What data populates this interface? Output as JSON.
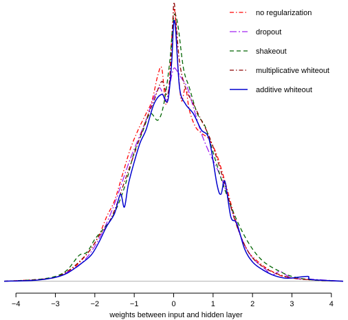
{
  "chart_data": {
    "type": "line",
    "title": "",
    "xlabel": "weights between input and hidden layer",
    "ylabel": "",
    "xlim": [
      -4.3,
      4.3
    ],
    "ylim": [
      -0.02,
      0.86
    ],
    "xticks": [
      -4,
      -3,
      -2,
      -1,
      0,
      1,
      2,
      3,
      4
    ],
    "xtick_labels": [
      "−4",
      "−3",
      "−2",
      "−1",
      "0",
      "1",
      "2",
      "3",
      "4"
    ],
    "yaxis_shown": false,
    "grid": false,
    "legend_position": "top-right",
    "baseline": 0,
    "series": [
      {
        "name": "no regularization",
        "color": "#ff0000",
        "dash": "dashdot",
        "x": [
          -4.3,
          -3.5,
          -3.0,
          -2.7,
          -2.5,
          -2.3,
          -2.1,
          -1.9,
          -1.7,
          -1.5,
          -1.3,
          -1.1,
          -0.9,
          -0.7,
          -0.55,
          -0.4,
          -0.3,
          -0.2,
          -0.12,
          -0.05,
          0.0,
          0.05,
          0.12,
          0.2,
          0.3,
          0.4,
          0.55,
          0.7,
          0.9,
          1.1,
          1.3,
          1.5,
          1.7,
          1.9,
          2.1,
          2.3,
          2.5,
          2.7,
          3.0,
          3.5,
          4.3
        ],
        "y": [
          0.0,
          0.005,
          0.012,
          0.03,
          0.045,
          0.07,
          0.1,
          0.14,
          0.2,
          0.25,
          0.33,
          0.41,
          0.47,
          0.52,
          0.56,
          0.64,
          0.66,
          0.55,
          0.6,
          0.75,
          0.84,
          0.81,
          0.65,
          0.56,
          0.6,
          0.53,
          0.48,
          0.46,
          0.44,
          0.39,
          0.31,
          0.22,
          0.14,
          0.09,
          0.065,
          0.045,
          0.03,
          0.018,
          0.01,
          0.004,
          0.0
        ]
      },
      {
        "name": "dropout",
        "color": "#a020f0",
        "dash": "longdashdot",
        "x": [
          -4.3,
          -3.5,
          -3.0,
          -2.7,
          -2.5,
          -2.3,
          -2.1,
          -1.9,
          -1.7,
          -1.5,
          -1.3,
          -1.1,
          -0.9,
          -0.7,
          -0.5,
          -0.35,
          -0.2,
          -0.1,
          0.0,
          0.1,
          0.2,
          0.35,
          0.5,
          0.7,
          0.9,
          1.1,
          1.3,
          1.5,
          1.7,
          1.9,
          2.1,
          2.3,
          2.5,
          2.7,
          3.0,
          3.5,
          4.3
        ],
        "y": [
          0.0,
          0.004,
          0.012,
          0.028,
          0.04,
          0.06,
          0.09,
          0.13,
          0.18,
          0.24,
          0.31,
          0.38,
          0.44,
          0.5,
          0.57,
          0.6,
          0.56,
          0.61,
          0.66,
          0.65,
          0.63,
          0.6,
          0.54,
          0.46,
          0.4,
          0.35,
          0.29,
          0.21,
          0.14,
          0.09,
          0.06,
          0.04,
          0.02,
          0.03,
          0.01,
          0.006,
          0.0
        ]
      },
      {
        "name": "shakeout",
        "color": "#006400",
        "dash": "dashed",
        "x": [
          -4.3,
          -3.5,
          -3.0,
          -2.7,
          -2.4,
          -2.2,
          -2.0,
          -1.8,
          -1.6,
          -1.4,
          -1.2,
          -1.0,
          -0.8,
          -0.6,
          -0.4,
          -0.25,
          -0.1,
          0.0,
          0.1,
          0.25,
          0.4,
          0.6,
          0.8,
          1.0,
          1.2,
          1.4,
          1.6,
          1.8,
          2.0,
          2.2,
          2.4,
          2.7,
          3.0,
          3.5,
          4.3
        ],
        "y": [
          0.0,
          0.005,
          0.015,
          0.035,
          0.08,
          0.09,
          0.13,
          0.16,
          0.19,
          0.24,
          0.31,
          0.4,
          0.46,
          0.52,
          0.5,
          0.55,
          0.68,
          0.82,
          0.8,
          0.66,
          0.6,
          0.52,
          0.48,
          0.4,
          0.32,
          0.25,
          0.19,
          0.14,
          0.1,
          0.07,
          0.05,
          0.03,
          0.015,
          0.004,
          0.0
        ]
      },
      {
        "name": "multiplicative whiteout",
        "color": "#8b0000",
        "dash": "dashdot",
        "x": [
          -4.3,
          -3.5,
          -3.0,
          -2.7,
          -2.4,
          -2.1,
          -1.9,
          -1.7,
          -1.5,
          -1.3,
          -1.1,
          -0.9,
          -0.7,
          -0.5,
          -0.3,
          -0.15,
          -0.05,
          0.0,
          0.05,
          0.15,
          0.3,
          0.5,
          0.7,
          0.9,
          1.1,
          1.3,
          1.5,
          1.7,
          1.9,
          2.1,
          2.4,
          2.7,
          3.0,
          3.5,
          4.3
        ],
        "y": [
          0.0,
          0.004,
          0.012,
          0.03,
          0.06,
          0.1,
          0.14,
          0.17,
          0.22,
          0.29,
          0.36,
          0.43,
          0.5,
          0.56,
          0.62,
          0.58,
          0.7,
          0.86,
          0.82,
          0.68,
          0.6,
          0.55,
          0.5,
          0.45,
          0.38,
          0.3,
          0.21,
          0.14,
          0.09,
          0.06,
          0.035,
          0.02,
          0.01,
          0.004,
          0.0
        ]
      },
      {
        "name": "additive whiteout",
        "color": "#0000cd",
        "dash": "solid",
        "x": [
          -4.3,
          -3.5,
          -3.0,
          -2.7,
          -2.4,
          -2.1,
          -1.9,
          -1.7,
          -1.5,
          -1.35,
          -1.25,
          -1.15,
          -1.0,
          -0.85,
          -0.7,
          -0.5,
          -0.3,
          -0.15,
          -0.05,
          0.0,
          0.05,
          0.15,
          0.3,
          0.5,
          0.7,
          0.9,
          1.1,
          1.2,
          1.3,
          1.45,
          1.6,
          1.8,
          2.0,
          2.2,
          2.5,
          2.8,
          3.0,
          3.4,
          3.5,
          4.3
        ],
        "y": [
          0.0,
          0.003,
          0.012,
          0.025,
          0.05,
          0.08,
          0.12,
          0.17,
          0.21,
          0.27,
          0.23,
          0.3,
          0.37,
          0.43,
          0.47,
          0.55,
          0.58,
          0.56,
          0.68,
          0.8,
          0.78,
          0.6,
          0.55,
          0.52,
          0.47,
          0.44,
          0.3,
          0.27,
          0.31,
          0.2,
          0.18,
          0.1,
          0.06,
          0.04,
          0.02,
          0.01,
          0.01,
          0.015,
          0.005,
          0.0
        ]
      }
    ]
  }
}
